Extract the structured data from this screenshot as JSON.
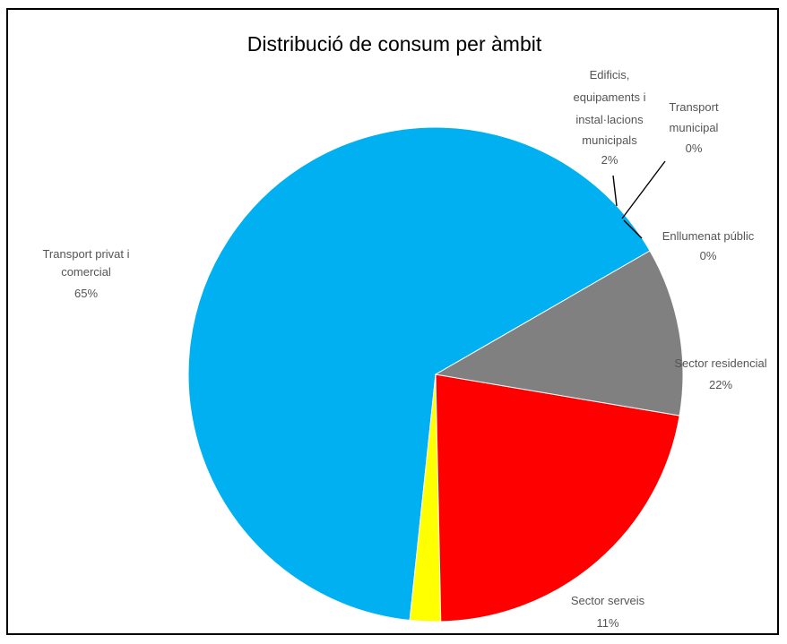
{
  "chart_data": {
    "type": "pie",
    "title": "Distribució de consum per àmbit",
    "slices": [
      {
        "label": "Transport privat i comercial",
        "percent_label": "65%",
        "value": 65,
        "color": "#00B0F0"
      },
      {
        "label": "Edificis, equipaments i instal·lacions municipals",
        "percent_label": "2%",
        "value": 2,
        "color": "#FFFF00"
      },
      {
        "label": "Transport municipal",
        "percent_label": "0%",
        "value": 0,
        "color": "#FFFF00"
      },
      {
        "label": "Enllumenat públic",
        "percent_label": "0%",
        "value": 0,
        "color": "#FF0000"
      },
      {
        "label": "Sector residencial",
        "percent_label": "22%",
        "value": 22,
        "color": "#FF0000"
      },
      {
        "label": "Sector serveis",
        "percent_label": "11%",
        "value": 11,
        "color": "#808080"
      }
    ],
    "legend": false
  }
}
